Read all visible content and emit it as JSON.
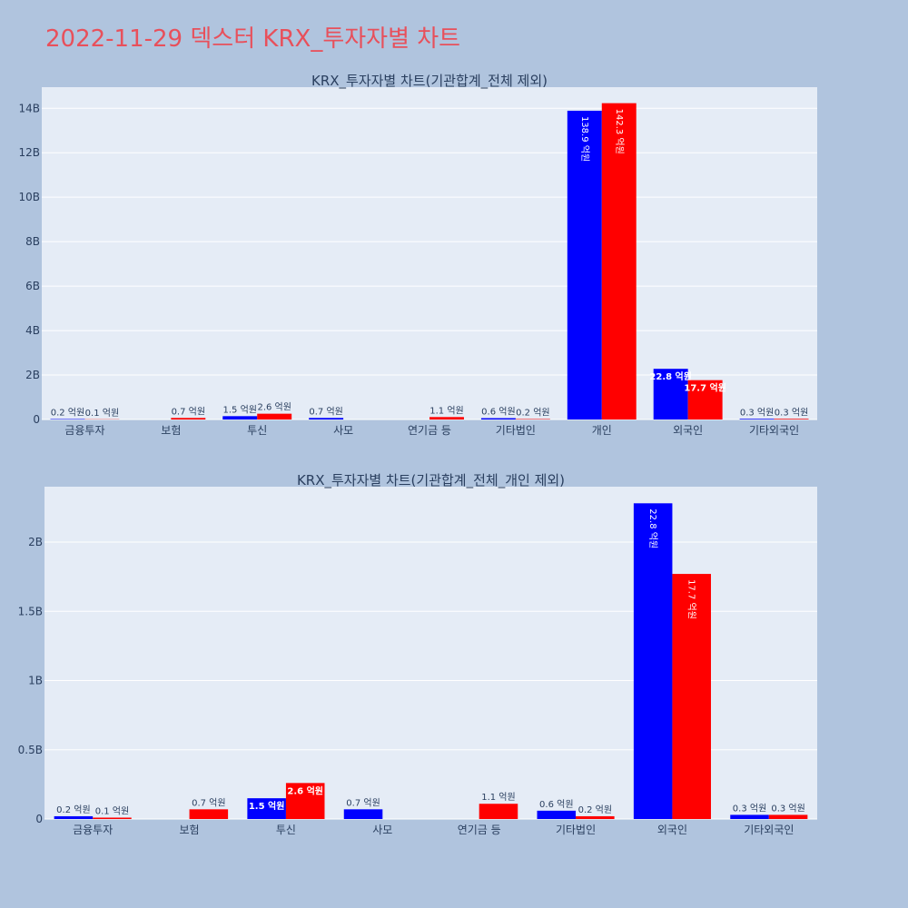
{
  "page": {
    "title": "2022-11-29 덱스터 KRX_투자자별 차트"
  },
  "colors": {
    "buy": "#0000ff",
    "sell": "#ff0000",
    "plot_bg": "#e5ecf6",
    "page_bg": "#b0c4de",
    "title": "#e8505b"
  },
  "chart_data": [
    {
      "type": "bar",
      "title": "KRX_투자자별 차트(기관합계_전체 제외)",
      "categories": [
        "금융투자",
        "보험",
        "투신",
        "사모",
        "연기금 등",
        "기타법인",
        "개인",
        "외국인",
        "기타외국인"
      ],
      "series": [
        {
          "values": [
            20000000,
            0,
            150000000,
            70000000,
            0,
            60000000,
            13890000000,
            2280000000,
            30000000
          ],
          "labels": [
            "0.2 억원",
            "",
            "1.5 억원",
            "0.7 억원",
            "",
            "0.6 억원",
            "138.9 억원",
            "22.8 억원",
            "0.3 억원"
          ]
        },
        {
          "values": [
            10000000,
            70000000,
            260000000,
            0,
            110000000,
            20000000,
            14230000000,
            1770000000,
            30000000
          ],
          "labels": [
            "0.1 억원",
            "0.7 억원",
            "2.6 억원",
            "",
            "1.1 억원",
            "0.2 억원",
            "142.3 억원",
            "17.7 억원",
            "0.3 억원"
          ]
        }
      ],
      "yticks": [
        0,
        2000000000,
        4000000000,
        6000000000,
        8000000000,
        10000000000,
        12000000000,
        14000000000
      ],
      "ytick_labels": [
        "0",
        "2B",
        "4B",
        "6B",
        "8B",
        "10B",
        "12B",
        "14B"
      ],
      "ylim": [
        0,
        14950000000
      ]
    },
    {
      "type": "bar",
      "title": "KRX_투자자별 차트(기관합계_전체_개인 제외)",
      "categories": [
        "금융투자",
        "보험",
        "투신",
        "사모",
        "연기금 등",
        "기타법인",
        "외국인",
        "기타외국인"
      ],
      "series": [
        {
          "values": [
            20000000,
            0,
            150000000,
            70000000,
            0,
            60000000,
            2280000000,
            30000000
          ],
          "labels": [
            "0.2 억원",
            "",
            "1.5 억원",
            "0.7 억원",
            "",
            "0.6 억원",
            "22.8 억원",
            "0.3 억원"
          ]
        },
        {
          "values": [
            10000000,
            70000000,
            260000000,
            0,
            110000000,
            20000000,
            1770000000,
            30000000
          ],
          "labels": [
            "0.1 억원",
            "0.7 억원",
            "2.6 억원",
            "",
            "1.1 억원",
            "0.2 억원",
            "17.7 억원",
            "0.3 억원"
          ]
        }
      ],
      "yticks": [
        0,
        500000000,
        1000000000,
        1500000000,
        2000000000
      ],
      "ytick_labels": [
        "0",
        "0.5B",
        "1B",
        "1.5B",
        "2B"
      ],
      "ylim": [
        0,
        2400000000
      ]
    }
  ]
}
